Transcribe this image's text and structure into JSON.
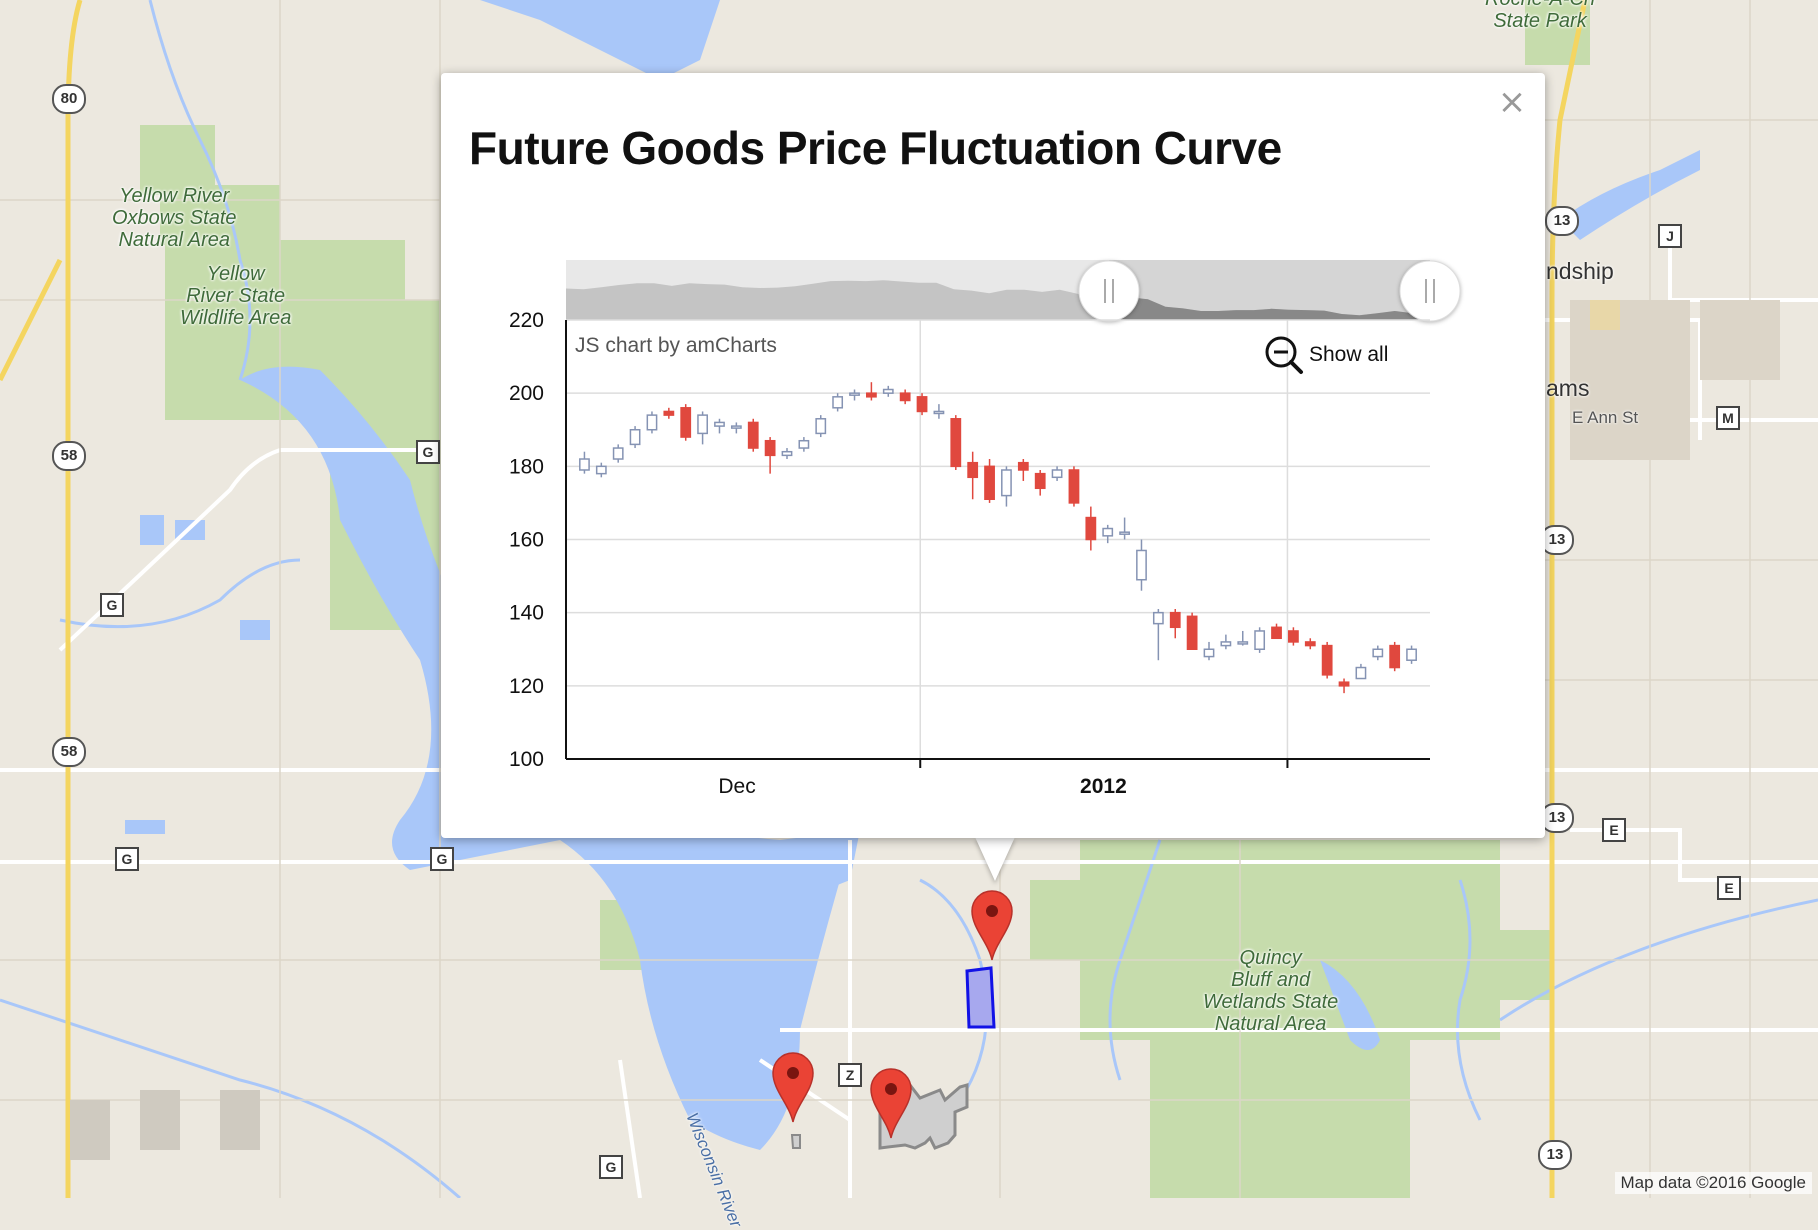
{
  "map": {
    "attribution": "Map data ©2016 Google",
    "areas": [
      {
        "name": "yellow-river-oxbows",
        "lines": [
          "Yellow River",
          "Oxbows State",
          "Natural Area"
        ]
      },
      {
        "name": "yellow-river-state-wildlife",
        "lines": [
          "Yellow",
          "River State",
          "Wildlife Area"
        ]
      },
      {
        "name": "quincy-bluff",
        "lines": [
          "Quincy",
          "Bluff and",
          "Wetlands State",
          "Natural Area"
        ]
      },
      {
        "name": "roche-a-cri",
        "lines": [
          "Roche-A-Cri",
          "State Park"
        ]
      }
    ],
    "towns": {
      "township": "ndship",
      "adams": "ams"
    },
    "streets": {
      "ann_st": "E Ann St",
      "wisconsin_river": "Wisconsin River"
    },
    "route_shields": {
      "us80": "80",
      "r58a": "58",
      "r58b": "58",
      "r13a": "13",
      "r13b": "13",
      "r13c": "13",
      "r13d": "13",
      "g1": "G",
      "g2": "G",
      "g3": "G",
      "g4": "G",
      "g5": "G",
      "z": "Z",
      "j": "J",
      "m": "M",
      "e1": "E",
      "e2": "E"
    }
  },
  "popup": {
    "title": "Future Goods Price Fluctuation Curve",
    "close_label": "×"
  },
  "chart_data": {
    "type": "candlestick",
    "title": "Future Goods Price Fluctuation Curve",
    "credit": "JS chart by amCharts",
    "zoom_button": "Show all",
    "y_ticks": [
      "220",
      "200",
      "180",
      "160",
      "140",
      "120",
      "100"
    ],
    "ylim": [
      100,
      220
    ],
    "x_tick_labels": [
      {
        "label": "Dec",
        "bold": false,
        "position": 0.198
      },
      {
        "label": "2012",
        "bold": true,
        "position": 0.622
      }
    ],
    "x_dividers": [
      0.41,
      0.835
    ],
    "colors": {
      "up": "#8593b3",
      "down": "#e0483e",
      "grid": "#dddddd"
    },
    "candles": [
      {
        "open": 179,
        "close": 182,
        "high": 184,
        "low": 178
      },
      {
        "open": 178,
        "close": 180,
        "high": 181,
        "low": 177
      },
      {
        "open": 182,
        "close": 185,
        "high": 186,
        "low": 181
      },
      {
        "open": 186,
        "close": 190,
        "high": 191,
        "low": 185
      },
      {
        "open": 190,
        "close": 194,
        "high": 195,
        "low": 189
      },
      {
        "open": 195,
        "close": 194,
        "high": 196,
        "low": 193
      },
      {
        "open": 196,
        "close": 188,
        "high": 197,
        "low": 187
      },
      {
        "open": 189,
        "close": 194,
        "high": 195,
        "low": 186
      },
      {
        "open": 191,
        "close": 192,
        "high": 193,
        "low": 189
      },
      {
        "open": 191,
        "close": 191,
        "high": 192,
        "low": 189
      },
      {
        "open": 192,
        "close": 185,
        "high": 193,
        "low": 184
      },
      {
        "open": 187,
        "close": 183,
        "high": 188,
        "low": 178
      },
      {
        "open": 183,
        "close": 184,
        "high": 185,
        "low": 182
      },
      {
        "open": 185,
        "close": 187,
        "high": 188,
        "low": 184
      },
      {
        "open": 189,
        "close": 193,
        "high": 194,
        "low": 188
      },
      {
        "open": 196,
        "close": 199,
        "high": 200,
        "low": 195
      },
      {
        "open": 200,
        "close": 200,
        "high": 201,
        "low": 198
      },
      {
        "open": 200,
        "close": 199,
        "high": 203,
        "low": 198
      },
      {
        "open": 200,
        "close": 201,
        "high": 202,
        "low": 199
      },
      {
        "open": 200,
        "close": 198,
        "high": 201,
        "low": 197
      },
      {
        "open": 199,
        "close": 195,
        "high": 200,
        "low": 194
      },
      {
        "open": 195,
        "close": 195,
        "high": 197,
        "low": 193
      },
      {
        "open": 193,
        "close": 180,
        "high": 194,
        "low": 179
      },
      {
        "open": 181,
        "close": 177,
        "high": 184,
        "low": 171
      },
      {
        "open": 180,
        "close": 171,
        "high": 182,
        "low": 170
      },
      {
        "open": 172,
        "close": 179,
        "high": 180,
        "low": 169
      },
      {
        "open": 181,
        "close": 179,
        "high": 182,
        "low": 176
      },
      {
        "open": 178,
        "close": 174,
        "high": 179,
        "low": 172
      },
      {
        "open": 177,
        "close": 179,
        "high": 180,
        "low": 176
      },
      {
        "open": 179,
        "close": 170,
        "high": 180,
        "low": 169
      },
      {
        "open": 166,
        "close": 160,
        "high": 169,
        "low": 157
      },
      {
        "open": 161,
        "close": 163,
        "high": 164,
        "low": 159
      },
      {
        "open": 162,
        "close": 162,
        "high": 166,
        "low": 160
      },
      {
        "open": 149,
        "close": 157,
        "high": 160,
        "low": 146
      },
      {
        "open": 137,
        "close": 140,
        "high": 141,
        "low": 127
      },
      {
        "open": 140,
        "close": 136,
        "high": 141,
        "low": 133
      },
      {
        "open": 139,
        "close": 130,
        "high": 140,
        "low": 130
      },
      {
        "open": 128,
        "close": 130,
        "high": 132,
        "low": 127
      },
      {
        "open": 131,
        "close": 132,
        "high": 134,
        "low": 130
      },
      {
        "open": 132,
        "close": 132,
        "high": 135,
        "low": 131
      },
      {
        "open": 130,
        "close": 135,
        "high": 136,
        "low": 129
      },
      {
        "open": 136,
        "close": 133,
        "high": 137,
        "low": 133
      },
      {
        "open": 135,
        "close": 132,
        "high": 136,
        "low": 131
      },
      {
        "open": 132,
        "close": 131,
        "high": 133,
        "low": 130
      },
      {
        "open": 131,
        "close": 123,
        "high": 132,
        "low": 122
      },
      {
        "open": 121,
        "close": 120,
        "high": 122,
        "low": 118
      },
      {
        "open": 122,
        "close": 125,
        "high": 126,
        "low": 122
      },
      {
        "open": 128,
        "close": 130,
        "high": 131,
        "low": 127
      },
      {
        "open": 131,
        "close": 125,
        "high": 132,
        "low": 124
      },
      {
        "open": 127,
        "close": 130,
        "high": 131,
        "low": 126
      }
    ]
  }
}
